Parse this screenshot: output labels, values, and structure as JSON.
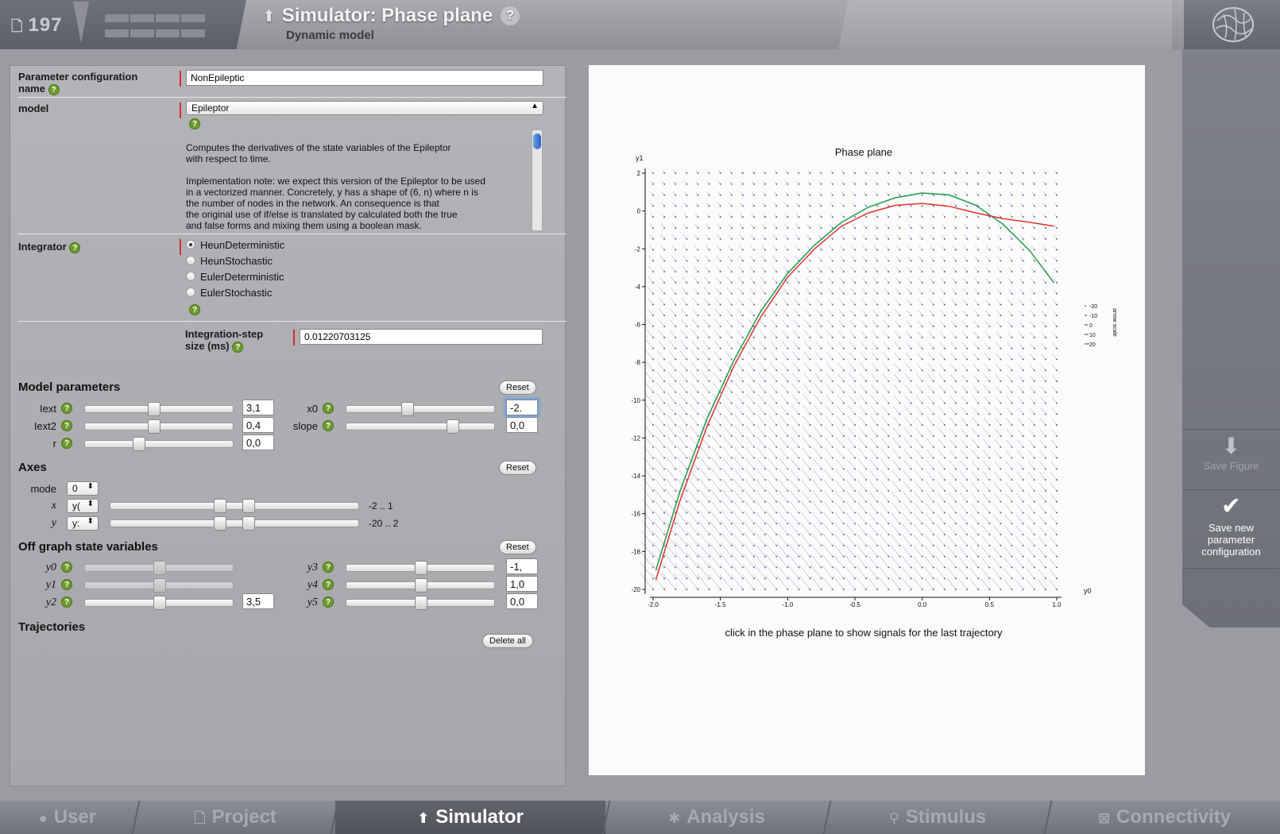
{
  "header": {
    "project_count": "197",
    "title": "Simulator: Phase plane",
    "subtitle": "Dynamic model",
    "help": "?"
  },
  "form": {
    "param_config_label": "Parameter configuration name",
    "param_config_value": "NonEpileptic",
    "model_label": "model",
    "model_value": "Epileptor",
    "model_description": "Computes the derivatives of the state variables of the Epileptor\nwith respect to time.\n\nImplementation note: we expect this version of the Epileptor to be used\nin a vectorized manner. Concretely, y has a shape of (6, n) where n is\nthe number of nodes in the network. An consequence is that\nthe original use of if/else is translated by calculated both the true\nand false forms and mixing them using a boolean mask.",
    "integrator_label": "Integrator",
    "integrators": [
      "HeunDeterministic",
      "HeunStochastic",
      "EulerDeterministic",
      "EulerStochastic"
    ],
    "integrator_selected": 0,
    "step_label": "Integration-step size (ms)",
    "step_value": "0.01220703125"
  },
  "model_params": {
    "title": "Model parameters",
    "reset": "Reset",
    "left": [
      {
        "name": "Iext",
        "value": "3,1",
        "pos": 0.46
      },
      {
        "name": "Iext2",
        "value": "0,4",
        "pos": 0.46
      },
      {
        "name": "r",
        "value": "0,0",
        "pos": 0.35
      }
    ],
    "right": [
      {
        "name": "x0",
        "value": "-2.",
        "pos": 0.4
      },
      {
        "name": "slope",
        "value": "0,0",
        "pos": 0.73
      }
    ]
  },
  "axes": {
    "title": "Axes",
    "reset": "Reset",
    "mode_label": "mode",
    "mode_value": "0",
    "x_label": "x",
    "x_value": "y(",
    "x_range": "-2 .. 1",
    "y_label": "y",
    "y_value": "y:",
    "y_range": "-20 .. 2"
  },
  "off_graph": {
    "title": "Off graph state variables",
    "reset": "Reset",
    "left": [
      {
        "name": "y0",
        "value": "",
        "pos": 0.5,
        "disabled": true
      },
      {
        "name": "y1",
        "value": "",
        "pos": 0.5,
        "disabled": true
      },
      {
        "name": "y2",
        "value": "3,5",
        "pos": 0.5,
        "disabled": false
      }
    ],
    "right": [
      {
        "name": "y3",
        "value": "-1,",
        "pos": 0.5
      },
      {
        "name": "y4",
        "value": "1,0",
        "pos": 0.5
      },
      {
        "name": "y5",
        "value": "0,0",
        "pos": 0.5
      }
    ]
  },
  "trajectories": {
    "title": "Trajectories",
    "delete_all": "Delete all"
  },
  "plot": {
    "title": "Phase plane",
    "xlabel": "y0",
    "ylabel": "y1",
    "caption": "click in the phase plane to show signals for the last trajectory",
    "arrow_scale_label": "arrow scale",
    "arrow_scale_ticks": [
      "-20",
      "-10",
      "0",
      "10",
      "20"
    ],
    "colors": {
      "traj_green": "#1e9a4a",
      "traj_red": "#e0332e",
      "vectors": "#3b3b8f"
    }
  },
  "chart_data": {
    "type": "line",
    "title": "Phase plane",
    "xlabel": "y0",
    "ylabel": "y1",
    "xlim": [
      -2.0,
      1.0
    ],
    "ylim": [
      -20,
      2
    ],
    "xticks": [
      -2.0,
      -1.5,
      -1.0,
      -0.5,
      0.0,
      0.5,
      1.0
    ],
    "yticks": [
      2,
      0,
      -2,
      -4,
      -6,
      -8,
      -10,
      -12,
      -14,
      -16,
      -18,
      -20
    ],
    "series": [
      {
        "x": [
          -1.98,
          -1.8,
          -1.6,
          -1.4,
          -1.2,
          -1.0,
          -0.8,
          -0.6,
          -0.4,
          -0.2,
          0.0,
          0.2,
          0.4,
          0.6,
          0.8,
          0.98
        ],
        "y": [
          -19.0,
          -14.8,
          -11.0,
          -7.9,
          -5.3,
          -3.3,
          -1.8,
          -0.6,
          0.2,
          0.7,
          0.95,
          0.85,
          0.3,
          -0.7,
          -2.1,
          -3.8
        ]
      },
      {
        "x": [
          -1.98,
          -1.8,
          -1.6,
          -1.4,
          -1.2,
          -1.0,
          -0.8,
          -0.6,
          -0.4,
          -0.2,
          0.0,
          0.2,
          0.4,
          0.6,
          0.8,
          0.98
        ],
        "y": [
          -19.5,
          -15.3,
          -11.4,
          -8.2,
          -5.6,
          -3.5,
          -2.0,
          -0.8,
          -0.1,
          0.3,
          0.4,
          0.25,
          -0.1,
          -0.4,
          -0.6,
          -0.8
        ]
      }
    ],
    "grid": false
  },
  "sidebar": {
    "save_figure": "Save Figure",
    "save_config": "Save new parameter configuration"
  },
  "nav": [
    "User",
    "Project",
    "Simulator",
    "Analysis",
    "Stimulus",
    "Connectivity"
  ],
  "nav_active": 2
}
